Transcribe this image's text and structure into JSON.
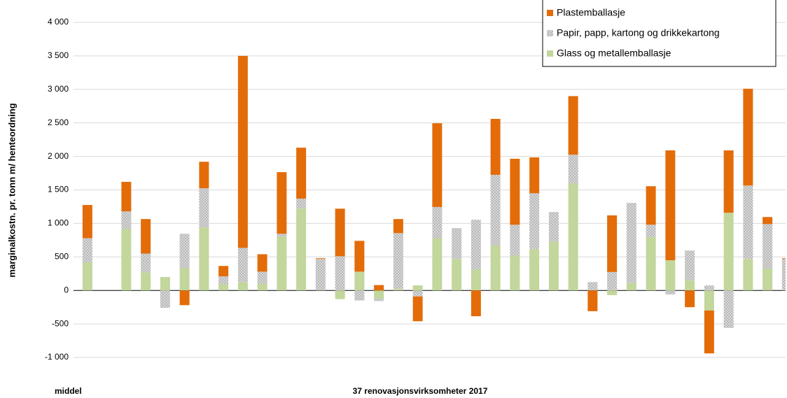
{
  "chart_data": {
    "type": "stacked_bar",
    "y_label": "marginalkostn. pr. tonn m/ henteordning",
    "x_group_labels": [
      "middel",
      "37 renovasjonsvirksomheter 2017"
    ],
    "series": [
      {
        "name": "Glass og metallemballasje",
        "color": "#c3d69b",
        "values": [
          420,
          0,
          920,
          270,
          200,
          335,
          940,
          95,
          125,
          100,
          800,
          1220,
          0,
          -130,
          280,
          -120,
          25,
          75,
          775,
          470,
          315,
          670,
          520,
          615,
          730,
          1600,
          0,
          -70,
          110,
          795,
          450,
          150,
          -300,
          1160,
          470,
          325,
          0
        ]
      },
      {
        "name": "Papir, papp, kartong og drikkekartong",
        "color": "#a0a0a0",
        "pattern": "dots",
        "values": [
          360,
          0,
          260,
          280,
          -260,
          510,
          585,
          115,
          510,
          180,
          45,
          150,
          470,
          510,
          -150,
          -40,
          830,
          -90,
          470,
          460,
          740,
          1055,
          460,
          835,
          440,
          425,
          125,
          275,
          1195,
          185,
          -60,
          445,
          75,
          -560,
          1095,
          665,
          470
        ]
      },
      {
        "name": "Plastemballasje",
        "color": "#e36c09",
        "values": [
          495,
          0,
          440,
          515,
          0,
          -220,
          395,
          155,
          2865,
          260,
          920,
          760,
          10,
          710,
          460,
          80,
          210,
          -370,
          1250,
          0,
          -385,
          835,
          985,
          535,
          0,
          875,
          -310,
          845,
          0,
          575,
          1640,
          -250,
          -640,
          930,
          1445,
          105,
          10
        ]
      }
    ],
    "ylim": [
      -1000,
      4000
    ],
    "yticks": [
      {
        "value": -1000,
        "label": "-1 000"
      },
      -500,
      0,
      500,
      {
        "value": 1000,
        "label": "1 000"
      },
      {
        "value": 1500,
        "label": "1 500"
      },
      {
        "value": 2000,
        "label": "2 000"
      },
      {
        "value": 2500,
        "label": "2 500"
      },
      {
        "value": 3000,
        "label": "3 000"
      },
      {
        "value": 3500,
        "label": "3 500"
      },
      {
        "value": 4000,
        "label": "4 000"
      }
    ],
    "grid": true,
    "legend": "top-right"
  }
}
